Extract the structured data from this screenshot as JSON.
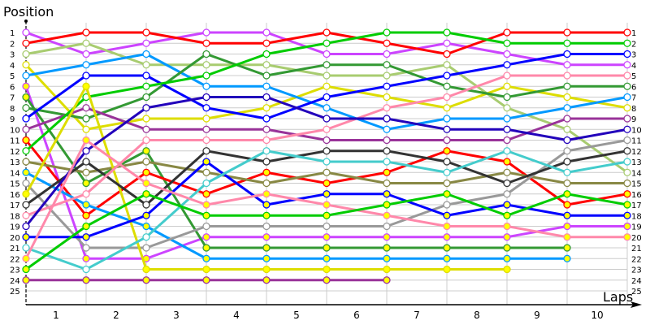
{
  "chart_data": {
    "type": "line",
    "xlabel": "Laps",
    "ylabel": "Position",
    "x_tick_labels": [
      "1",
      "2",
      "3",
      "4",
      "5",
      "6",
      "7",
      "8",
      "9",
      "10"
    ],
    "y_tick_labels": [
      "1",
      "2",
      "3",
      "4",
      "5",
      "6",
      "7",
      "8",
      "9",
      "10",
      "11",
      "12",
      "13",
      "14",
      "15",
      "16",
      "17",
      "18",
      "19",
      "20",
      "21",
      "22",
      "23",
      "24",
      "25"
    ],
    "x_range": [
      0,
      10
    ],
    "ylim": [
      25,
      1
    ],
    "y_inverted": true,
    "grid": true,
    "marker_colors": {
      "normal": "#ffffff",
      "highlighted": "#ffff00"
    },
    "series": [
      {
        "color": "#cc44ff",
        "marker_fill": "normal",
        "positions": [
          1,
          3,
          2,
          1,
          1,
          3,
          3,
          2,
          3,
          4,
          4
        ]
      },
      {
        "color": "#ff0000",
        "marker_fill": "normal",
        "positions": [
          2,
          1,
          1,
          2,
          2,
          1,
          2,
          3,
          1,
          1,
          1
        ]
      },
      {
        "color": "#a8cc70",
        "marker_fill": "normal",
        "positions": [
          3,
          2,
          4,
          4,
          4,
          5,
          5,
          4,
          8,
          10,
          14
        ]
      },
      {
        "color": "#dddd00",
        "marker_fill": "normal",
        "positions": [
          4,
          10,
          9,
          9,
          8,
          6,
          7,
          8,
          6,
          7,
          8
        ]
      },
      {
        "color": "#0099ff",
        "marker_fill": "normal",
        "positions": [
          5,
          4,
          3,
          6,
          6,
          8,
          10,
          9,
          9,
          8,
          7
        ]
      },
      {
        "color": "#cc44ff",
        "marker_fill": "highlighted",
        "positions": [
          6,
          22,
          22,
          20,
          20,
          20,
          20,
          20,
          20,
          19,
          19
        ]
      },
      {
        "color": "#339933",
        "marker_fill": "highlighted",
        "positions": [
          7,
          15,
          12,
          21,
          21,
          21,
          21,
          21,
          21,
          21,
          null
        ]
      },
      {
        "color": "#339933",
        "marker_fill": "normal",
        "positions": [
          8,
          9,
          7,
          3,
          5,
          4,
          4,
          6,
          7,
          6,
          6
        ]
      },
      {
        "color": "#0000ff",
        "marker_fill": "normal",
        "positions": [
          9,
          5,
          5,
          8,
          9,
          7,
          6,
          5,
          4,
          3,
          3
        ]
      },
      {
        "color": "#993399",
        "marker_fill": "normal",
        "positions": [
          10,
          8,
          10,
          10,
          10,
          11,
          11,
          11,
          11,
          9,
          9
        ]
      },
      {
        "color": "#ff0000",
        "marker_fill": "highlighted",
        "positions": [
          11,
          18,
          14,
          16,
          14,
          15,
          14,
          12,
          13,
          17,
          16
        ]
      },
      {
        "color": "#00cc00",
        "marker_fill": "normal",
        "positions": [
          12,
          7,
          6,
          5,
          3,
          2,
          1,
          1,
          2,
          2,
          2
        ]
      },
      {
        "color": "#888844",
        "marker_fill": "normal",
        "positions": [
          13,
          14,
          13,
          14,
          15,
          14,
          15,
          15,
          14,
          15,
          15
        ]
      },
      {
        "color": "#0099ff",
        "marker_fill": "highlighted",
        "positions": [
          14,
          17,
          19,
          22,
          22,
          22,
          22,
          22,
          22,
          22,
          null
        ]
      },
      {
        "color": "#999999",
        "marker_fill": "normal",
        "positions": [
          15,
          21,
          21,
          19,
          19,
          19,
          19,
          17,
          16,
          12,
          11
        ]
      },
      {
        "color": "#dddd00",
        "marker_fill": "highlighted",
        "positions": [
          16,
          6,
          23,
          23,
          23,
          23,
          23,
          23,
          23,
          null,
          null
        ]
      },
      {
        "color": "#333333",
        "marker_fill": "normal",
        "positions": [
          17,
          13,
          17,
          12,
          13,
          12,
          12,
          13,
          15,
          13,
          12
        ]
      },
      {
        "color": "#ff88aa",
        "marker_fill": "normal",
        "positions": [
          18,
          16,
          11,
          11,
          11,
          10,
          8,
          7,
          5,
          5,
          5
        ]
      },
      {
        "color": "#2200bb",
        "marker_fill": "normal",
        "positions": [
          19,
          12,
          8,
          7,
          7,
          9,
          9,
          10,
          10,
          11,
          10
        ]
      },
      {
        "color": "#0000ff",
        "marker_fill": "highlighted",
        "positions": [
          20,
          20,
          18,
          13,
          17,
          16,
          16,
          18,
          17,
          18,
          18
        ]
      },
      {
        "color": "#44cccc",
        "marker_fill": "normal",
        "positions": [
          21,
          23,
          20,
          15,
          12,
          13,
          13,
          14,
          12,
          14,
          13
        ]
      },
      {
        "color": "#ff88aa",
        "marker_fill": "highlighted",
        "positions": [
          22,
          11,
          15,
          17,
          16,
          17,
          18,
          19,
          19,
          20,
          20
        ]
      },
      {
        "color": "#00cc00",
        "marker_fill": "highlighted",
        "positions": [
          23,
          19,
          16,
          18,
          18,
          18,
          17,
          16,
          18,
          16,
          17
        ]
      },
      {
        "color": "#993399",
        "marker_fill": "highlighted",
        "positions": [
          24,
          24,
          24,
          24,
          24,
          24,
          24,
          null,
          null,
          null,
          null
        ]
      }
    ]
  }
}
